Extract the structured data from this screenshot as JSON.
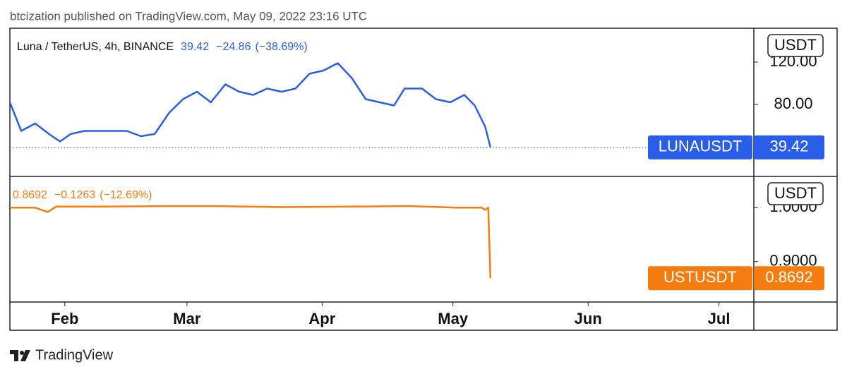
{
  "header": "btcization published on TradingView.com, May 09, 2022 23:16 UTC",
  "footer": "TradingView",
  "chart_data": [
    {
      "type": "line",
      "symbol": "Luna / TetherUS, 4h, BINANCE",
      "currency": "USDT",
      "change": "−24.86",
      "change_pct": "(−38.69%)",
      "xlim": [
        18.4,
        189
      ],
      "ylim": [
        12,
        152
      ],
      "yticks": [
        {
          "value": 80,
          "label": "80.00"
        },
        {
          "value": 120,
          "label": "120.00"
        }
      ],
      "grid": false,
      "series": [
        {
          "name": "LUNAUSDT",
          "color": "#2a5ee8",
          "price_line": true,
          "x": [
            18.4,
            21.0,
            24.2,
            27.4,
            29.9,
            32.3,
            35.5,
            40.3,
            45.2,
            48.4,
            51.6,
            54.9,
            58.1,
            61.3,
            64.5,
            67.8,
            71.0,
            74.2,
            77.4,
            80.7,
            83.9,
            87.1,
            90.3,
            93.6,
            96.8,
            100.0,
            103.2,
            106.5,
            108.9,
            112.9,
            116.1,
            119.4,
            122.6,
            125.0,
            127.4,
            128.6
          ],
          "values": [
            82,
            55,
            62,
            52,
            45,
            52,
            55,
            55,
            55,
            50,
            52,
            72,
            85,
            92,
            82,
            99,
            92,
            89,
            95,
            92,
            95,
            109,
            112,
            119,
            105,
            85,
            82,
            79,
            95,
            95,
            85,
            82,
            89,
            79,
            59,
            39.42
          ]
        }
      ]
    },
    {
      "type": "line",
      "currency": "USDT",
      "change": "−0.1263",
      "change_pct": "(−12.69%)",
      "xlim": [
        18.4,
        189
      ],
      "ylim": [
        0.825,
        1.058
      ],
      "xticks": [
        {
          "value": 31,
          "label": "Feb"
        },
        {
          "value": 59,
          "label": "Mar"
        },
        {
          "value": 90,
          "label": "Apr"
        },
        {
          "value": 120,
          "label": "May"
        },
        {
          "value": 151,
          "label": "Jun"
        },
        {
          "value": 181,
          "label": "Jul"
        }
      ],
      "yticks": [
        {
          "value": 1.0,
          "label": "1.0000"
        },
        {
          "value": 0.9,
          "label": "0.9000"
        }
      ],
      "grid": false,
      "series": [
        {
          "name": "USTUSDT",
          "color": "#f57c0f",
          "price_line": false,
          "x": [
            18.4,
            24.2,
            27.1,
            29.0,
            40.3,
            56.5,
            64.5,
            80.7,
            96.8,
            109.7,
            121.0,
            126.6,
            127.4,
            128.1,
            128.6
          ],
          "values": [
            1.0,
            1.0,
            0.992,
            1.002,
            1.002,
            1.003,
            1.003,
            1.001,
            1.002,
            1.003,
            1.0,
            1.0,
            0.996,
            1.0,
            0.8692
          ]
        }
      ]
    }
  ]
}
